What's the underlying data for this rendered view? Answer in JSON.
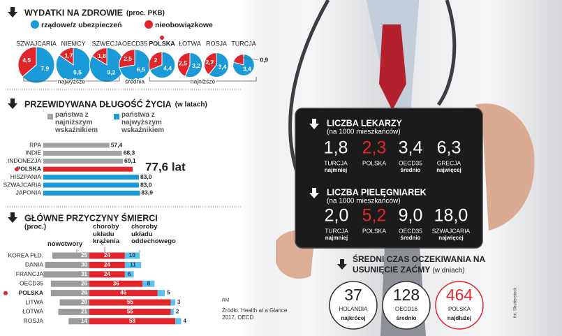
{
  "chart_data": [
    {
      "type": "pie",
      "title": "WYDATKI NA ZDROWIE",
      "subtitle": "(proc. PKB)",
      "categories": [
        "SZWAJCARIA",
        "NIEMCY",
        "SZWECJA",
        "OECD35",
        "POLSKA",
        "ŁOTWA",
        "ROSJA",
        "TURCJA"
      ],
      "series": [
        {
          "name": "rządowe/z ubezpieczeń",
          "color": "#1a9ad6",
          "values": [
            7.9,
            9.5,
            9.2,
            6.5,
            4.4,
            3.2,
            3.4,
            3.4
          ],
          "value_labels": [
            "7,9",
            "9,5",
            "9,2",
            "6,5",
            "4,4",
            "3,2",
            "3,4",
            "3,4"
          ]
        },
        {
          "name": "nieobowiązkowe",
          "color": "#e0262b",
          "values": [
            4.5,
            1.7,
            1.8,
            2.5,
            2,
            2.5,
            2.2,
            0.9
          ],
          "value_labels": [
            "4,5",
            "1,7",
            "1,8",
            "2,5",
            "2",
            "2,5",
            "2,2",
            "0,9"
          ]
        }
      ],
      "groups": [
        "najwyższe",
        "średnia",
        "najniższe"
      ],
      "highlight": "POLSKA"
    },
    {
      "type": "bar",
      "orientation": "horizontal",
      "title": "PRZEWIDYWANA DŁUGOŚĆ ŻYCIA",
      "subtitle": "(w latach)",
      "legend": [
        {
          "name": "państwa z najniższym wskaźnikiem",
          "color": "#a3a3a3"
        },
        {
          "name": "państwa z najwyższym wskaźnikiem",
          "color": "#1a9ad6"
        }
      ],
      "categories": [
        "RPA",
        "INDIE",
        "INDONEZJA",
        "POLSKA",
        "HISZPANIA",
        "SZWAJCARIA",
        "JAPONIA"
      ],
      "values": [
        57.4,
        68.3,
        69.1,
        77.6,
        83.0,
        83.0,
        83.9
      ],
      "value_labels": [
        "57,4",
        "68,3",
        "69,1",
        "77,6 lat",
        "83,0",
        "83,0",
        "83,9"
      ],
      "colors": [
        "#a3a3a3",
        "#a3a3a3",
        "#a3a3a3",
        "#e0262b",
        "#1a9ad6",
        "#1a9ad6",
        "#1a9ad6"
      ],
      "highlight": "POLSKA"
    },
    {
      "type": "stacked_bar",
      "orientation": "horizontal",
      "title": "GŁÓWNE PRZYCZYNY ŚMIERCI",
      "subtitle": "(proc.)",
      "categories": [
        "KOREA PŁD.",
        "DANIA",
        "FRANCJA",
        "OECD35",
        "POLSKA",
        "LITWA",
        "ŁOTWA",
        "ROSJA"
      ],
      "series": [
        {
          "name": "nowotwory",
          "color": "#9b9b9b",
          "values": [
            25,
            30,
            31,
            26,
            26,
            20,
            21,
            14
          ]
        },
        {
          "name": "choroby układu krążenia",
          "color": "#e0262b",
          "values": [
            24,
            24,
            24,
            36,
            46,
            55,
            55,
            58
          ]
        },
        {
          "name": "choroby układu oddechowego",
          "color": "#5cc1ec",
          "values": [
            10,
            11,
            6,
            8,
            5,
            3,
            2,
            4
          ]
        }
      ],
      "highlight": "POLSKA"
    }
  ],
  "doctors": {
    "title": "LICZBA LEKARZY",
    "subtitle": "(na 1000 mieszkańców)",
    "highlight": "POLSKA",
    "items": [
      {
        "value": "1,8",
        "country": "TURCJA",
        "note": "najmniej"
      },
      {
        "value": "2,3",
        "country": "POLSKA"
      },
      {
        "value": "3,4",
        "country": "OECD35",
        "note": "średnio"
      },
      {
        "value": "6,3",
        "country": "GRECJA",
        "note": "najwięcej"
      }
    ]
  },
  "nurses": {
    "title": "LICZBA PIELĘGNIAREK",
    "subtitle": "(na 1000 mieszkańców)",
    "highlight": "POLSKA",
    "items": [
      {
        "value": "2,0",
        "country": "TURCJA",
        "note": "najmniej"
      },
      {
        "value": "5,2",
        "country": "POLSKA"
      },
      {
        "value": "9,0",
        "country": "OECD35",
        "note": "średnio"
      },
      {
        "value": "18,0",
        "country": "SZWAJCARIA",
        "note": "najwięcej"
      }
    ]
  },
  "cataract": {
    "title": "ŚREDNI CZAS OCZEKIWANIA NA USUNIĘCIE ZAĆMY",
    "subtitle": "(w dniach)",
    "highlight": "POLSKA",
    "items": [
      {
        "value": "37",
        "country": "HOLANDIA",
        "note": "najkrócej"
      },
      {
        "value": "128",
        "country": "OECD16",
        "note": "średnio"
      },
      {
        "value": "464",
        "country": "POLSKA",
        "note": "najdłużej"
      }
    ]
  },
  "credits": {
    "author": "RM",
    "source": "Źródło: Health at a Glance 2017, OECD",
    "photo": "fot. Shutterstock"
  }
}
